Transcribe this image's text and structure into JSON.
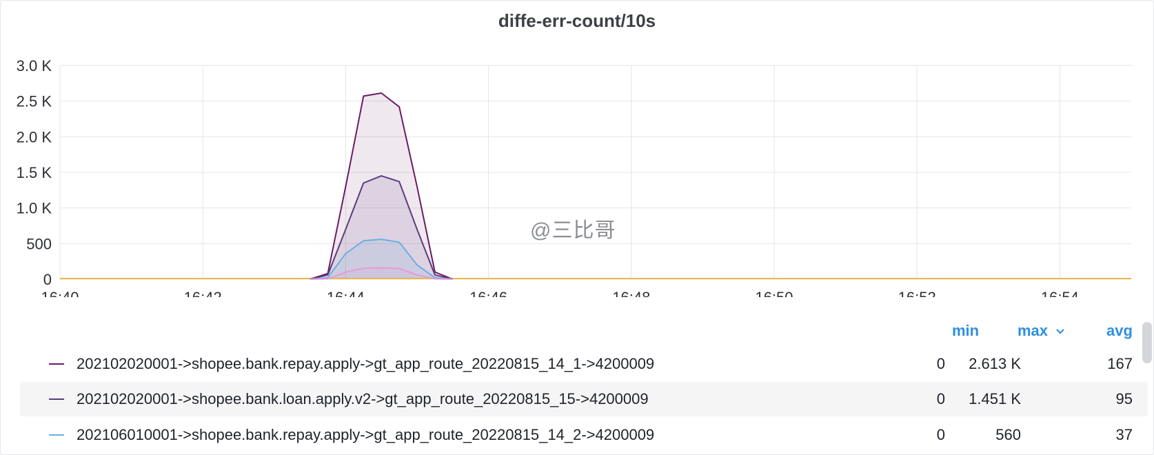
{
  "panel": {
    "title": "diffe-err-count/10s",
    "watermark": "@三比哥"
  },
  "chart_data": {
    "type": "area",
    "title": "diffe-err-count/10s",
    "x_ticks": [
      "16:40",
      "16:42",
      "16:44",
      "16:46",
      "16:48",
      "16:50",
      "16:52",
      "16:54"
    ],
    "y_ticks": [
      "0",
      "500",
      "1.0 K",
      "1.5 K",
      "2.0 K",
      "2.5 K",
      "3.0 K"
    ],
    "ylim": [
      0,
      3000
    ],
    "xlim": [
      "16:40",
      "16:55"
    ],
    "grid": true,
    "x": [
      "16:43:30",
      "16:43:45",
      "16:44:00",
      "16:44:15",
      "16:44:30",
      "16:44:45",
      "16:45:00",
      "16:45:15",
      "16:45:30"
    ],
    "series": [
      {
        "name": "202102020001->shopee.bank.repay.apply->gt_app_route_20220815_14_1->4200009",
        "color": "#6b1a63",
        "fill": "rgba(107,26,99,0.10)",
        "values": [
          0,
          80,
          1300,
          2570,
          2613,
          2420,
          1300,
          100,
          0
        ]
      },
      {
        "name": "202102020001->shopee.bank.loan.apply.v2->gt_app_route_20220815_15->4200009",
        "color": "#5a3b7c",
        "fill": "rgba(90,59,124,0.12)",
        "values": [
          0,
          60,
          700,
          1350,
          1451,
          1370,
          700,
          60,
          0
        ]
      },
      {
        "name": "202106010001->shopee.bank.repay.apply->gt_app_route_20220815_14_2->4200009",
        "color": "#6aaee0",
        "fill": "rgba(106,174,224,0.15)",
        "values": [
          0,
          20,
          360,
          540,
          560,
          520,
          200,
          20,
          0
        ]
      },
      {
        "name": "",
        "color": "#e69ad6",
        "fill": "rgba(230,154,214,0.15)",
        "values": [
          0,
          5,
          100,
          155,
          160,
          150,
          60,
          5,
          0
        ]
      }
    ],
    "legend": {
      "columns": [
        "min",
        "max",
        "avg"
      ],
      "sort_icon": "chevron-down-icon",
      "rows": [
        {
          "name": "202102020001->shopee.bank.repay.apply->gt_app_route_20220815_14_1->4200009",
          "min": "0",
          "max": "2.613 K",
          "avg": "167"
        },
        {
          "name": "202102020001->shopee.bank.loan.apply.v2->gt_app_route_20220815_15->4200009",
          "min": "0",
          "max": "1.451 K",
          "avg": "95"
        },
        {
          "name": "202106010001->shopee.bank.repay.apply->gt_app_route_20220815_14_2->4200009",
          "min": "0",
          "max": "560",
          "avg": "37"
        }
      ]
    }
  }
}
